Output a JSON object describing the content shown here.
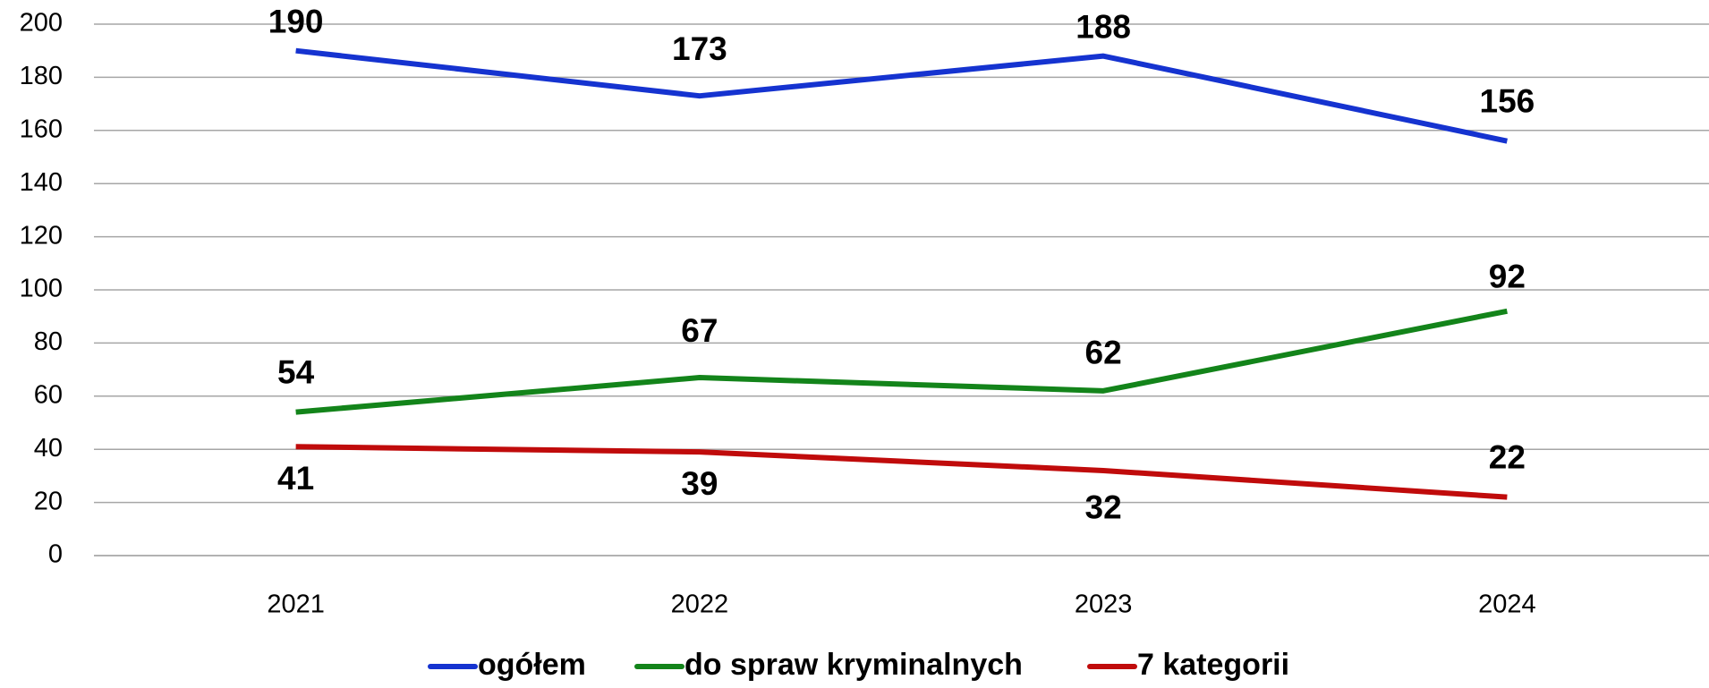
{
  "chart_data": {
    "type": "line",
    "categories": [
      "2021",
      "2022",
      "2023",
      "2024"
    ],
    "series": [
      {
        "name": "ogółem",
        "color": "#1533d0",
        "values": [
          190,
          173,
          188,
          156
        ]
      },
      {
        "name": "do spraw kryminalnych",
        "color": "#13841a",
        "values": [
          54,
          67,
          62,
          92
        ]
      },
      {
        "name": "7 kategorii",
        "color": "#c00b0b",
        "values": [
          41,
          39,
          32,
          22
        ]
      }
    ],
    "ylim": [
      0,
      200
    ],
    "yticks": [
      0,
      20,
      40,
      60,
      80,
      100,
      120,
      140,
      160,
      180,
      200
    ],
    "grid": true,
    "legend": "bottom"
  }
}
